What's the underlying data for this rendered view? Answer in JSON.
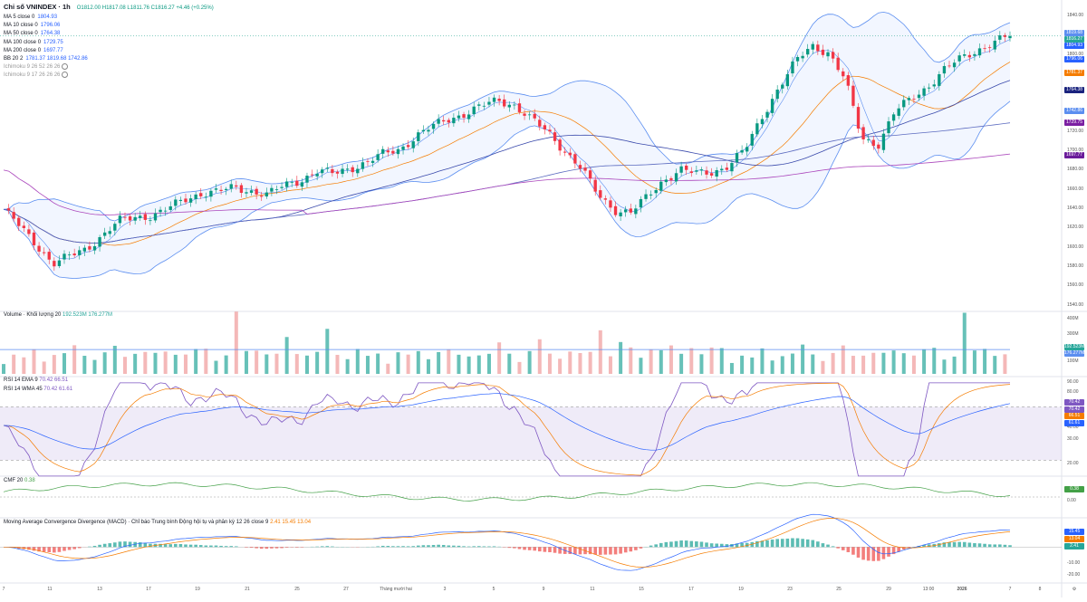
{
  "header": {
    "title": "Chỉ số VNINDEX · 1h",
    "ohlc": "O1812.00 H1817.08 L1811.76 C1816.27 +4.46 (+0.25%)"
  },
  "indicators_main": [
    {
      "label": "MA 5 close 0",
      "value": "1804.93",
      "color": "#2962ff"
    },
    {
      "label": "MA 10 close 0",
      "value": "1796.06",
      "color": "#2962ff"
    },
    {
      "label": "MA 50 close 0",
      "value": "1764.38",
      "color": "#2962ff"
    },
    {
      "label": "MA 100 close 0",
      "value": "1729.75",
      "color": "#2962ff"
    },
    {
      "label": "MA 200 close 0",
      "value": "1697.77",
      "color": "#2962ff"
    },
    {
      "label": "BB 20 2",
      "value": "1781.37  1819.68  1742.86",
      "color": "#2962ff"
    },
    {
      "label": "Ichimoku 9 26 52 26 26",
      "value": "",
      "color": "#999"
    },
    {
      "label": "Ichimoku 9 17 26 26 26",
      "value": "",
      "color": "#999"
    }
  ],
  "volume_label": "Volume · Khối lượng 20",
  "volume_values": "192.523M  176.277M",
  "rsi_labels": [
    {
      "label": "RSI 14 EMA 9",
      "value": "70.42  66.51"
    },
    {
      "label": "RSI 14 WMA 45",
      "value": "70.42  61.61"
    }
  ],
  "cmf_label": "CMF 20",
  "cmf_value": "0.38",
  "macd_label": "Moving Average Convergence Divergence (MACD) · Chỉ báo Trung bình Động hội tụ và phân kỳ  12 26 close 9",
  "macd_values": "2.41  15.45  13.04",
  "price_axis": [
    "1840.00",
    "1820.00",
    "1800.00",
    "1780.00",
    "1760.00",
    "1740.00",
    "1720.00",
    "1700.00",
    "1680.00",
    "1660.00",
    "1640.00",
    "1620.00",
    "1600.00",
    "1580.00",
    "1560.00",
    "1540.00"
  ],
  "price_tags": [
    {
      "value": "1819.68",
      "color": "#5b8ef0"
    },
    {
      "value": "1816.27",
      "color": "#26a69a"
    },
    {
      "value": "1804.93",
      "color": "#2962ff"
    },
    {
      "value": "1796.06",
      "color": "#2962ff"
    },
    {
      "value": "1781.37",
      "color": "#f57c00"
    },
    {
      "value": "1764.38",
      "color": "#1a237e"
    },
    {
      "value": "1742.86",
      "color": "#5b8ef0"
    },
    {
      "value": "1729.75",
      "color": "#7b1fa2"
    },
    {
      "value": "1697.77",
      "color": "#6a1b9a"
    }
  ],
  "volume_axis": [
    "400M",
    "300M",
    "100M"
  ],
  "volume_tags": [
    {
      "value": "192.523M",
      "color": "#26a69a"
    },
    {
      "value": "176.277M",
      "color": "#5b8ef0"
    }
  ],
  "rsi_axis": [
    "90.00",
    "80.00",
    "50.00",
    "40.00",
    "30.00",
    "20.00"
  ],
  "rsi_tags": [
    {
      "value": "70.42",
      "color": "#7e57c2"
    },
    {
      "value": "70.42",
      "color": "#7e57c2"
    },
    {
      "value": "66.51",
      "color": "#f57c00"
    },
    {
      "value": "61.61",
      "color": "#2962ff"
    }
  ],
  "cmf_axis": [
    "0.00"
  ],
  "cmf_tag": {
    "value": "0.38",
    "color": "#43a047"
  },
  "macd_axis": [
    "-10.00",
    "-20.00"
  ],
  "macd_tags": [
    {
      "value": "15.45",
      "color": "#2962ff"
    },
    {
      "value": "13.04",
      "color": "#f57c00"
    },
    {
      "value": "2.41",
      "color": "#26a69a"
    }
  ],
  "x_axis": [
    "7",
    "11",
    "13",
    "17",
    "19",
    "21",
    "25",
    "27",
    "Tháng mười hai",
    "3",
    "5",
    "9",
    "11",
    "15",
    "17",
    "19",
    "23",
    "25",
    "29",
    "13:00",
    "2026",
    "7",
    "8"
  ],
  "chart_data": {
    "type": "candlestick",
    "title": "Chỉ số VNINDEX · 1h",
    "ylim": [
      1540,
      1840
    ],
    "close_path": [
      1640,
      1622,
      1604,
      1585,
      1592,
      1600,
      1614,
      1628,
      1632,
      1634,
      1641,
      1650,
      1657,
      1658,
      1662,
      1659,
      1655,
      1664,
      1670,
      1679,
      1676,
      1682,
      1688,
      1696,
      1701,
      1715,
      1724,
      1732,
      1738,
      1745,
      1751,
      1746,
      1731,
      1718,
      1700,
      1682,
      1655,
      1640,
      1637,
      1652,
      1670,
      1681,
      1676,
      1678,
      1686,
      1702,
      1735,
      1765,
      1790,
      1806,
      1800,
      1772,
      1712,
      1706,
      1739,
      1752,
      1765,
      1782,
      1793,
      1802,
      1810,
      1816
    ],
    "last_close": 1816.27,
    "volume_m": [
      120,
      150,
      110,
      180,
      130,
      160,
      140,
      200,
      170,
      130,
      150,
      190,
      145,
      210,
      160,
      140,
      175,
      230,
      150,
      165,
      185,
      140,
      155,
      420,
      160,
      220,
      180,
      140,
      250,
      170,
      190,
      160,
      300,
      150,
      175,
      192
    ],
    "rsi_range": [
      20,
      90
    ],
    "macd_range": [
      -20,
      15
    ]
  }
}
